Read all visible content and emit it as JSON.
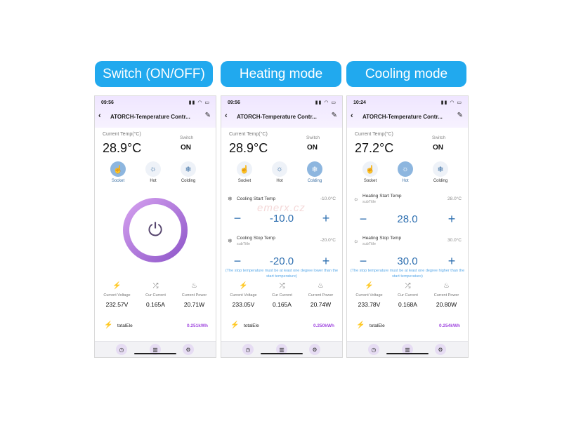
{
  "headers": [
    "Switch (ON/OFF)",
    "Heating mode",
    "Cooling mode"
  ],
  "watermark": "emerx.cz",
  "icons": {
    "back": "back-arrow-icon",
    "edit": "edit-pencil-icon",
    "socket": "hand-icon",
    "hot": "sun-icon",
    "colding": "snowflake-icon",
    "voltage": "lightning-icon",
    "current": "shuffle-icon",
    "power": "flame-icon",
    "total": "energy-icon"
  },
  "colors": {
    "header_bg": "#21a9ee",
    "accent": "#2e6fb0",
    "energy": "#a24be0",
    "ring_start": "#d7a3f0",
    "ring_end": "#8c54c8"
  },
  "phones": [
    {
      "time": "09:56",
      "title": "ATORCH-Temperature Contr...",
      "current_temp_label": "Current Temp(°C)",
      "current_temp": "28.9°C",
      "switch_label": "Switch",
      "switch_value": "ON",
      "modes": [
        "Socket",
        "Hot",
        "Colding"
      ],
      "active_mode": "Socket",
      "metrics": [
        {
          "label": "Current Voltage",
          "value": "232.57V"
        },
        {
          "label": "Cur Current",
          "value": "0.165A"
        },
        {
          "label": "Current Power",
          "value": "20.71W"
        }
      ],
      "total_label": "totalEle",
      "total_value": "0.251kWh"
    },
    {
      "time": "09:56",
      "title": "ATORCH-Temperature Contr...",
      "current_temp_label": "Current Temp(°C)",
      "current_temp": "28.9°C",
      "switch_label": "Switch",
      "switch_value": "ON",
      "modes": [
        "Socket",
        "Hot",
        "Colding"
      ],
      "active_mode": "Colding",
      "start_label": "Cooling Start Temp",
      "start_sub": "",
      "start_value": "-10.0°C",
      "start_step": "-10.0",
      "stop_label": "Cooling Stop Temp",
      "stop_sub": "subTitle",
      "stop_value": "-20.0°C",
      "stop_step": "-20.0",
      "note": "(The stop temperature must be at least one degree lower than the start temperature)",
      "metrics": [
        {
          "label": "Current Voltage",
          "value": "233.05V"
        },
        {
          "label": "Cur Current",
          "value": "0.165A"
        },
        {
          "label": "Current Power",
          "value": "20.74W"
        }
      ],
      "total_label": "totalEle",
      "total_value": "0.250kWh"
    },
    {
      "time": "10:24",
      "title": "ATORCH-Temperature Contr...",
      "current_temp_label": "Current Temp(°C)",
      "current_temp": "27.2°C",
      "switch_label": "Switch",
      "switch_value": "ON",
      "modes": [
        "Socket",
        "Hot",
        "Colding"
      ],
      "active_mode": "Hot",
      "start_label": "Heating Start Temp",
      "start_sub": "subTitle",
      "start_value": "28.0°C",
      "start_step": "28.0",
      "stop_label": "Heating Stop Temp",
      "stop_sub": "subTitle",
      "stop_value": "30.0°C",
      "stop_step": "30.0",
      "note": "(The stop temperature must be at least one degree higher than the start temperature)",
      "metrics": [
        {
          "label": "Current Voltage",
          "value": "233.78V"
        },
        {
          "label": "Cur Current",
          "value": "0.168A"
        },
        {
          "label": "Current Power",
          "value": "20.80W"
        }
      ],
      "total_label": "totalEle",
      "total_value": "0.254kWh"
    }
  ]
}
